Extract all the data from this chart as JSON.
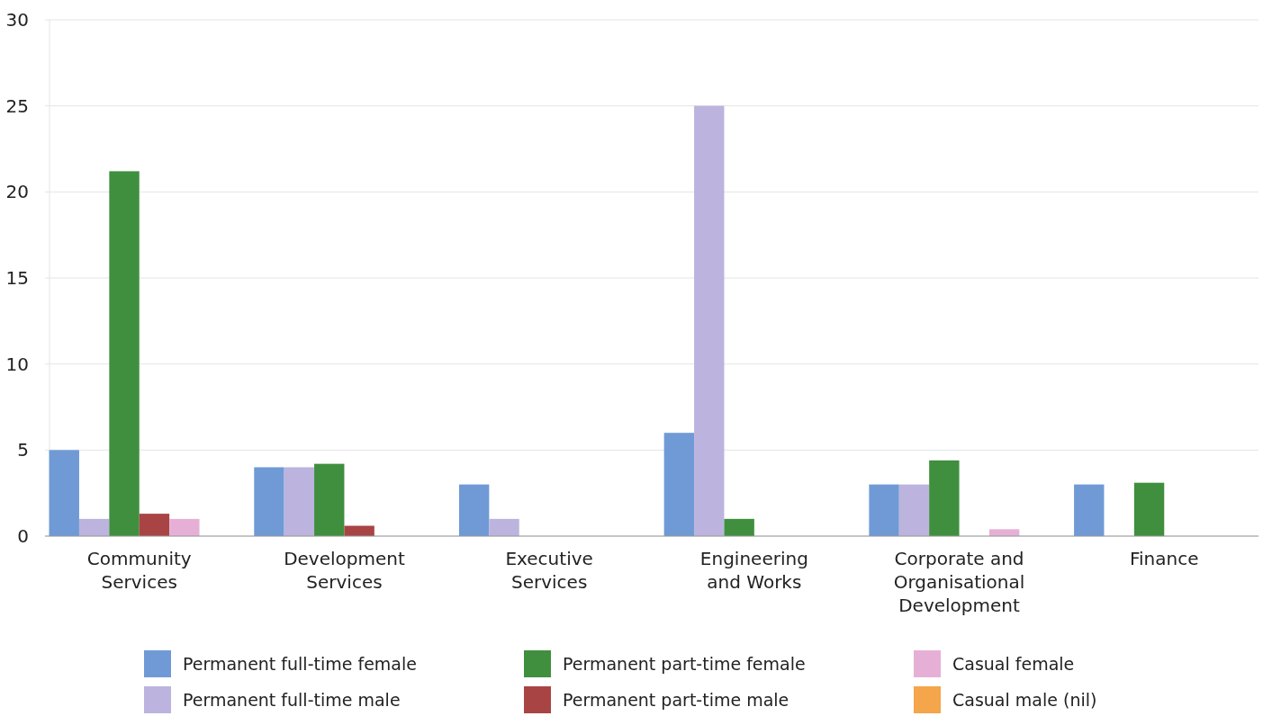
{
  "chart_data": {
    "type": "bar",
    "categories": [
      "Community Services",
      "Development Services",
      "Executive Services",
      "Engineering and Works",
      "Corporate and Organisational Development",
      "Finance"
    ],
    "series": [
      {
        "name": "Permanent full-time female",
        "color": "#6f9ad6",
        "values": [
          5,
          4,
          3,
          6,
          3,
          3
        ]
      },
      {
        "name": "Permanent full-time male",
        "color": "#bcb4de",
        "values": [
          1,
          4,
          1,
          25,
          3,
          0
        ]
      },
      {
        "name": "Permanent part-time female",
        "color": "#3f8f3f",
        "values": [
          21.2,
          4.2,
          0,
          1,
          4.4,
          3.1
        ]
      },
      {
        "name": "Permanent part-time male",
        "color": "#a94444",
        "values": [
          1.3,
          0.6,
          0,
          0,
          0,
          0
        ]
      },
      {
        "name": "Casual female",
        "color": "#e6b0d6",
        "values": [
          1,
          0,
          0,
          0,
          0.4,
          0
        ]
      },
      {
        "name": "Casual male (nil)",
        "color": "#f5a54a",
        "values": [
          0,
          0,
          0,
          0,
          0,
          0
        ]
      }
    ],
    "ylim": [
      0,
      30
    ],
    "yticks": [
      0,
      5,
      10,
      15,
      20,
      25,
      30
    ],
    "grid": "y",
    "legend": "bottom"
  }
}
